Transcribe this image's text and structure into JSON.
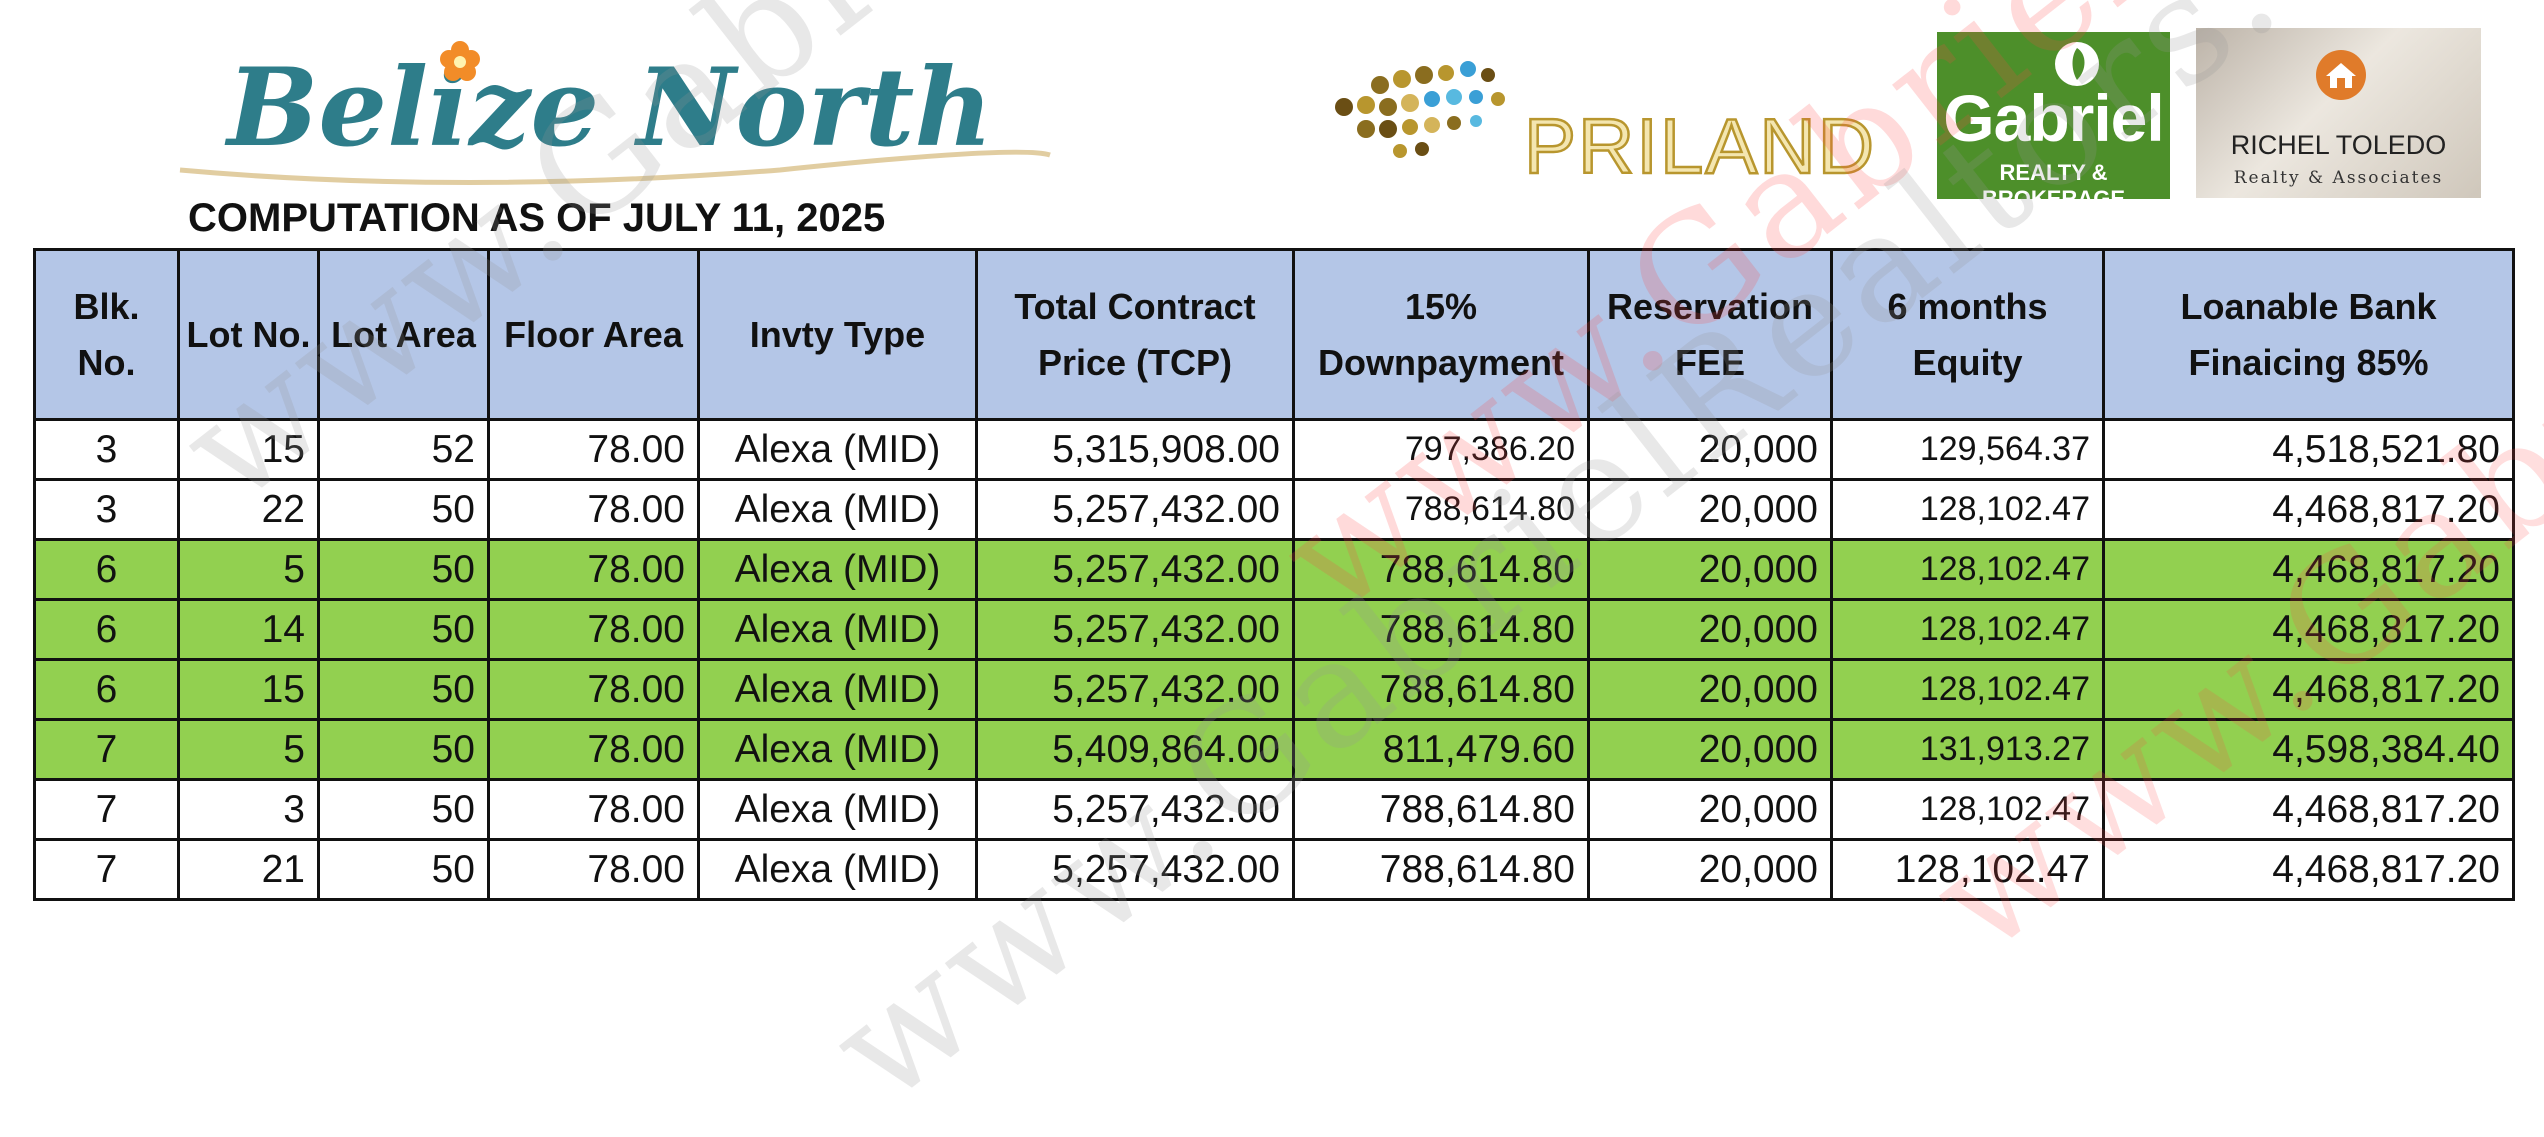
{
  "header": {
    "belize_logo_text": "Belize North",
    "priland_logo_text": "PRILAND",
    "gabriel_logo": {
      "name": "Gabriel",
      "subtitle": "REALTY & BROKERAGE"
    },
    "richel_logo": {
      "name": "RICHEL TOLEDO",
      "subtitle": "Realty & Associates"
    },
    "computation_title": "COMPUTATION AS OF JULY 11, 2025"
  },
  "watermarks": [
    "www.GabrielRealtors.com"
  ],
  "table": {
    "columns": [
      "Blk. No.",
      "Lot No.",
      "Lot Area",
      "Floor Area",
      "Invty Type",
      "Total Contract Price (TCP)",
      "15% Downpayment",
      "Reservation FEE",
      "6 months Equity",
      "Loanable Bank Finaicing 85%"
    ],
    "rows": [
      {
        "blk": "3",
        "lot": "15",
        "lot_area": "52",
        "floor_area": "78.00",
        "type": "Alexa (MID)",
        "tcp": "5,315,908.00",
        "dp": "797,386.20",
        "fee": "20,000",
        "equity": "129,564.37",
        "loan": "4,518,521.80",
        "highlighted": false
      },
      {
        "blk": "3",
        "lot": "22",
        "lot_area": "50",
        "floor_area": "78.00",
        "type": "Alexa (MID)",
        "tcp": "5,257,432.00",
        "dp": "788,614.80",
        "fee": "20,000",
        "equity": "128,102.47",
        "loan": "4,468,817.20",
        "highlighted": false
      },
      {
        "blk": "6",
        "lot": "5",
        "lot_area": "50",
        "floor_area": "78.00",
        "type": "Alexa (MID)",
        "tcp": "5,257,432.00",
        "dp": "788,614.80",
        "fee": "20,000",
        "equity": "128,102.47",
        "loan": "4,468,817.20",
        "highlighted": true
      },
      {
        "blk": "6",
        "lot": "14",
        "lot_area": "50",
        "floor_area": "78.00",
        "type": "Alexa (MID)",
        "tcp": "5,257,432.00",
        "dp": "788,614.80",
        "fee": "20,000",
        "equity": "128,102.47",
        "loan": "4,468,817.20",
        "highlighted": true
      },
      {
        "blk": "6",
        "lot": "15",
        "lot_area": "50",
        "floor_area": "78.00",
        "type": "Alexa (MID)",
        "tcp": "5,257,432.00",
        "dp": "788,614.80",
        "fee": "20,000",
        "equity": "128,102.47",
        "loan": "4,468,817.20",
        "highlighted": true
      },
      {
        "blk": "7",
        "lot": "5",
        "lot_area": "50",
        "floor_area": "78.00",
        "type": "Alexa (MID)",
        "tcp": "5,409,864.00",
        "dp": "811,479.60",
        "fee": "20,000",
        "equity": "131,913.27",
        "loan": "4,598,384.40",
        "highlighted": true
      },
      {
        "blk": "7",
        "lot": "3",
        "lot_area": "50",
        "floor_area": "78.00",
        "type": "Alexa (MID)",
        "tcp": "5,257,432.00",
        "dp": "788,614.80",
        "fee": "20,000",
        "equity": "128,102.47",
        "loan": "4,468,817.20",
        "highlighted": false
      },
      {
        "blk": "7",
        "lot": "21",
        "lot_area": "50",
        "floor_area": "78.00",
        "type": "Alexa (MID)",
        "tcp": "5,257,432.00",
        "dp": "788,614.80",
        "fee": "20,000",
        "equity": "128,102.47",
        "loan": "4,468,817.20",
        "highlighted": false
      }
    ]
  },
  "colors": {
    "header_fill": "#b4c6e7",
    "highlight_fill": "#92d050",
    "belize_teal": "#2e7d8a",
    "priland_gold": "#b8962e",
    "gabriel_green": "#4d8f2a"
  }
}
